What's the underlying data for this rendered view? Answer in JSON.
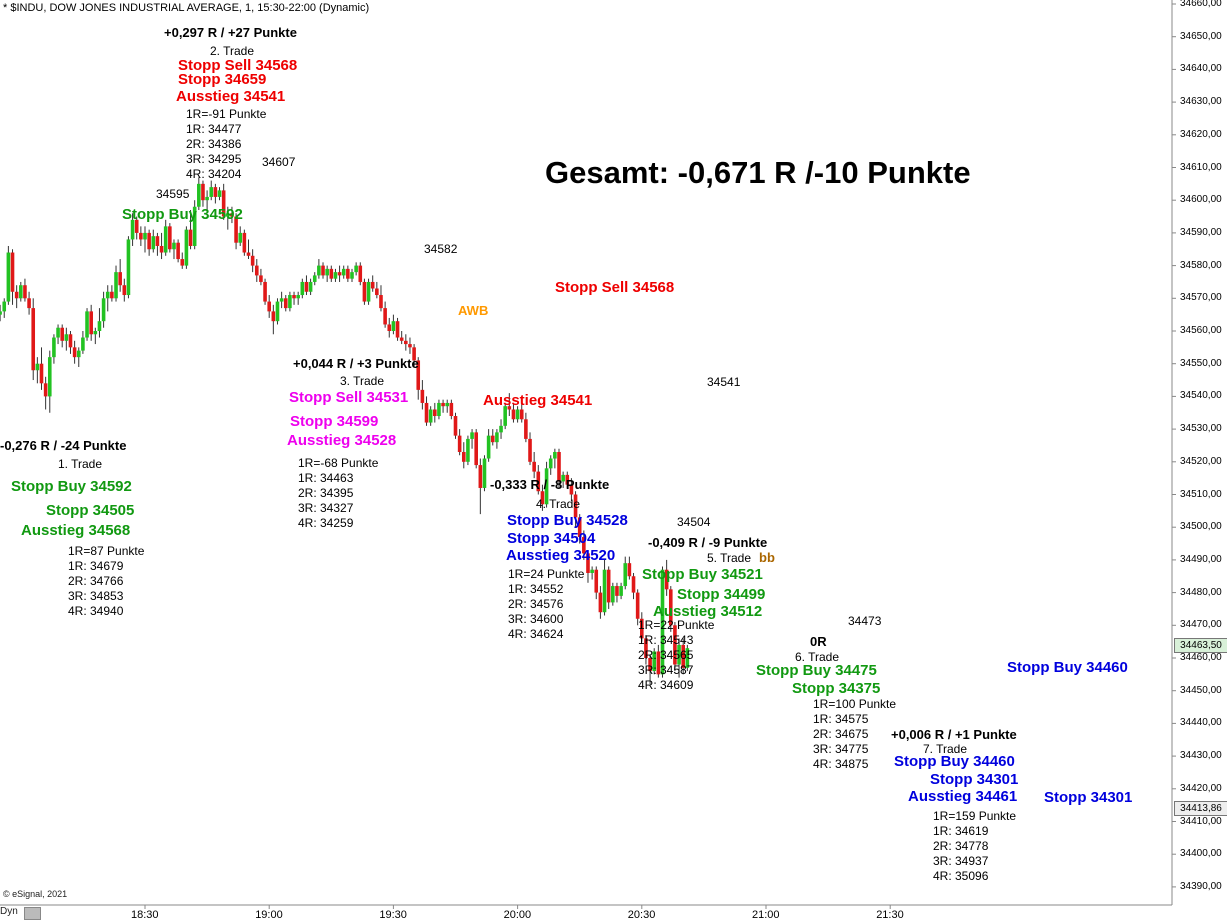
{
  "header": {
    "title": "* $INDU, DOW JONES INDUSTRIAL AVERAGE, 1, 15:30-22:00 (Dynamic)"
  },
  "gesamt": "Gesamt: -0,671 R /-10 Punkte",
  "footer": {
    "copyright": "© eSignal, 2021",
    "dyn": "Dyn"
  },
  "colors": {
    "up": "#22c222",
    "down": "#e01818",
    "red": "#ee0000",
    "green": "#119911",
    "blue": "#0000dd",
    "magenta": "#ee00ee",
    "orange": "#ff9900",
    "brown": "#aa6600"
  },
  "chart_data": {
    "type": "candlestick",
    "symbol": "$INDU",
    "interval_minutes": 1,
    "session": "15:30-22:00",
    "ylim": [
      34385,
      34663
    ],
    "y_ticks": [
      "34390,00",
      "34400,00",
      "34410,00",
      "34420,00",
      "34430,00",
      "34440,00",
      "34450,00",
      "34460,00",
      "34470,00",
      "34480,00",
      "34490,00",
      "34500,00",
      "34510,00",
      "34520,00",
      "34530,00",
      "34540,00",
      "34550,00",
      "34560,00",
      "34570,00",
      "34580,00",
      "34590,00",
      "34600,00",
      "34610,00",
      "34620,00",
      "34630,00",
      "34640,00",
      "34650,00",
      "34660,00"
    ],
    "x_ticks": [
      {
        "label": "18:30",
        "t": 0
      },
      {
        "label": "19:00",
        "t": 30
      },
      {
        "label": "19:30",
        "t": 60
      },
      {
        "label": "20:00",
        "t": 90
      },
      {
        "label": "20:30",
        "t": 120
      },
      {
        "label": "21:00",
        "t": 150
      },
      {
        "label": "21:30",
        "t": 180
      }
    ],
    "last_price_tags": [
      "34463,50",
      "34413,86"
    ],
    "candles": [
      [
        -35,
        34565,
        34568,
        34563,
        34566
      ],
      [
        -34,
        34566,
        34570,
        34564,
        34569
      ],
      [
        -33,
        34569,
        34586,
        34568,
        34584
      ],
      [
        -32,
        34584,
        34585,
        34568,
        34572
      ],
      [
        -31,
        34572,
        34574,
        34567,
        34570
      ],
      [
        -30,
        34570,
        34575,
        34569,
        34574
      ],
      [
        -29,
        34574,
        34576,
        34569,
        34570
      ],
      [
        -28,
        34570,
        34572,
        34565,
        34567
      ],
      [
        -27,
        34567,
        34570,
        34545,
        34548
      ],
      [
        -26,
        34548,
        34552,
        34544,
        34550
      ],
      [
        -25,
        34550,
        34555,
        34542,
        34544
      ],
      [
        -24,
        34544,
        34546,
        34536,
        34540
      ],
      [
        -23,
        34540,
        34554,
        34535,
        34552
      ],
      [
        -22,
        34552,
        34559,
        34550,
        34558
      ],
      [
        -21,
        34558,
        34562,
        34556,
        34561
      ],
      [
        -20,
        34561,
        34562,
        34555,
        34557
      ],
      [
        -19,
        34557,
        34561,
        34554,
        34559
      ],
      [
        -18,
        34559,
        34560,
        34553,
        34555
      ],
      [
        -17,
        34555,
        34557,
        34550,
        34552
      ],
      [
        -16,
        34552,
        34555,
        34549,
        34554
      ],
      [
        -15,
        34554,
        34560,
        34553,
        34558
      ],
      [
        -14,
        34558,
        34567,
        34557,
        34566
      ],
      [
        -13,
        34566,
        34568,
        34557,
        34559
      ],
      [
        -12,
        34559,
        34561,
        34556,
        34560
      ],
      [
        -11,
        34560,
        34567,
        34558,
        34563
      ],
      [
        -10,
        34563,
        34572,
        34561,
        34570
      ],
      [
        -9,
        34570,
        34574,
        34566,
        34572
      ],
      [
        -8,
        34572,
        34574,
        34569,
        34570
      ],
      [
        -7,
        34570,
        34580,
        34569,
        34578
      ],
      [
        -6,
        34578,
        34582,
        34572,
        34574
      ],
      [
        -5,
        34574,
        34576,
        34569,
        34571
      ],
      [
        -4,
        34571,
        34589,
        34570,
        34588
      ],
      [
        -3,
        34588,
        34596,
        34586,
        34594
      ],
      [
        -2,
        34594,
        34595,
        34588,
        34590
      ],
      [
        -1,
        34590,
        34592,
        34586,
        34588
      ],
      [
        0,
        34588,
        34592,
        34584,
        34590
      ],
      [
        1,
        34590,
        34591,
        34583,
        34585
      ],
      [
        2,
        34585,
        34591,
        34584,
        34589
      ],
      [
        3,
        34589,
        34590,
        34583,
        34586
      ],
      [
        4,
        34586,
        34590,
        34582,
        34584
      ],
      [
        5,
        34584,
        34594,
        34583,
        34592
      ],
      [
        6,
        34592,
        34593,
        34584,
        34585
      ],
      [
        7,
        34585,
        34588,
        34582,
        34587
      ],
      [
        8,
        34587,
        34588,
        34581,
        34582
      ],
      [
        9,
        34582,
        34584,
        34579,
        34580
      ],
      [
        10,
        34580,
        34592,
        34579,
        34591
      ],
      [
        11,
        34591,
        34597,
        34585,
        34586
      ],
      [
        12,
        34586,
        34600,
        34585,
        34598
      ],
      [
        13,
        34598,
        34607,
        34597,
        34605
      ],
      [
        14,
        34605,
        34606,
        34598,
        34600
      ],
      [
        15,
        34600,
        34603,
        34596,
        34601
      ],
      [
        16,
        34601,
        34606,
        34600,
        34604
      ],
      [
        17,
        34604,
        34605,
        34599,
        34601
      ],
      [
        18,
        34601,
        34604,
        34600,
        34603
      ],
      [
        19,
        34603,
        34605,
        34594,
        34595
      ],
      [
        20,
        34595,
        34598,
        34591,
        34596
      ],
      [
        21,
        34596,
        34598,
        34593,
        34595
      ],
      [
        22,
        34595,
        34596,
        34585,
        34587
      ],
      [
        23,
        34587,
        34592,
        34586,
        34590
      ],
      [
        24,
        34590,
        34591,
        34583,
        34584
      ],
      [
        25,
        34584,
        34588,
        34582,
        34583
      ],
      [
        26,
        34583,
        34585,
        34578,
        34580
      ],
      [
        27,
        34580,
        34582,
        34575,
        34577
      ],
      [
        28,
        34577,
        34579,
        34574,
        34575
      ],
      [
        29,
        34575,
        34576,
        34568,
        34569
      ],
      [
        30,
        34569,
        34571,
        34564,
        34566
      ],
      [
        31,
        34566,
        34568,
        34559,
        34563
      ],
      [
        32,
        34563,
        34570,
        34562,
        34569
      ],
      [
        33,
        34569,
        34572,
        34567,
        34570
      ],
      [
        34,
        34570,
        34571,
        34566,
        34567
      ],
      [
        35,
        34567,
        34572,
        34566,
        34571
      ],
      [
        36,
        34571,
        34572,
        34568,
        34570
      ],
      [
        37,
        34570,
        34572,
        34568,
        34571
      ],
      [
        38,
        34571,
        34576,
        34570,
        34575
      ],
      [
        39,
        34575,
        34577,
        34571,
        34572
      ],
      [
        40,
        34572,
        34576,
        34571,
        34575
      ],
      [
        41,
        34575,
        34578,
        34574,
        34577
      ],
      [
        42,
        34577,
        34582,
        34576,
        34580
      ],
      [
        43,
        34580,
        34581,
        34576,
        34577
      ],
      [
        44,
        34577,
        34580,
        34575,
        34579
      ],
      [
        45,
        34579,
        34580,
        34575,
        34576
      ],
      [
        46,
        34576,
        34579,
        34575,
        34578
      ],
      [
        47,
        34578,
        34580,
        34575,
        34577
      ],
      [
        48,
        34577,
        34580,
        34576,
        34579
      ],
      [
        49,
        34579,
        34580,
        34575,
        34576
      ],
      [
        50,
        34576,
        34579,
        34575,
        34578
      ],
      [
        51,
        34578,
        34581,
        34577,
        34580
      ],
      [
        52,
        34580,
        34581,
        34574,
        34575
      ],
      [
        53,
        34575,
        34576,
        34568,
        34569
      ],
      [
        54,
        34569,
        34576,
        34568,
        34575
      ],
      [
        55,
        34575,
        34577,
        34572,
        34573
      ],
      [
        56,
        34573,
        34575,
        34570,
        34571
      ],
      [
        57,
        34571,
        34574,
        34566,
        34567
      ],
      [
        58,
        34567,
        34569,
        34561,
        34562
      ],
      [
        59,
        34562,
        34564,
        34558,
        34560
      ],
      [
        60,
        34560,
        34565,
        34559,
        34563
      ],
      [
        61,
        34563,
        34564,
        34557,
        34558
      ],
      [
        62,
        34558,
        34560,
        34556,
        34557
      ],
      [
        63,
        34557,
        34559,
        34554,
        34556
      ],
      [
        64,
        34556,
        34558,
        34553,
        34555
      ],
      [
        65,
        34555,
        34556,
        34549,
        34551
      ],
      [
        66,
        34551,
        34552,
        34539,
        34542
      ],
      [
        67,
        34542,
        34545,
        34536,
        34538
      ],
      [
        68,
        34538,
        34540,
        34531,
        34532
      ],
      [
        69,
        34532,
        34537,
        34531,
        34536
      ],
      [
        70,
        34536,
        34538,
        34532,
        34534
      ],
      [
        71,
        34534,
        34539,
        34533,
        34538
      ],
      [
        72,
        34538,
        34539,
        34535,
        34537
      ],
      [
        73,
        34537,
        34539,
        34535,
        34538
      ],
      [
        74,
        34538,
        34539,
        34533,
        34534
      ],
      [
        75,
        34534,
        34535,
        34527,
        34528
      ],
      [
        76,
        34528,
        34530,
        34522,
        34523
      ],
      [
        77,
        34523,
        34526,
        34518,
        34520
      ],
      [
        78,
        34520,
        34528,
        34519,
        34527
      ],
      [
        79,
        34527,
        34530,
        34524,
        34529
      ],
      [
        80,
        34529,
        34530,
        34518,
        34519
      ],
      [
        81,
        34519,
        34521,
        34504,
        34512
      ],
      [
        82,
        34512,
        34522,
        34511,
        34521
      ],
      [
        83,
        34521,
        34530,
        34520,
        34528
      ],
      [
        84,
        34528,
        34530,
        34525,
        34526
      ],
      [
        85,
        34526,
        34530,
        34524,
        34529
      ],
      [
        86,
        34529,
        34533,
        34527,
        34531
      ],
      [
        87,
        34531,
        34538,
        34530,
        34537
      ],
      [
        88,
        34537,
        34541,
        34534,
        34536
      ],
      [
        89,
        34536,
        34538,
        34532,
        34533
      ],
      [
        90,
        34533,
        34537,
        34532,
        34536
      ],
      [
        91,
        34536,
        34538,
        34532,
        34533
      ],
      [
        92,
        34533,
        34535,
        34526,
        34527
      ],
      [
        93,
        34527,
        34529,
        34519,
        34520
      ],
      [
        94,
        34520,
        34523,
        34515,
        34517
      ],
      [
        95,
        34517,
        34519,
        34510,
        34511
      ],
      [
        96,
        34511,
        34513,
        34505,
        34507
      ],
      [
        97,
        34507,
        34520,
        34506,
        34518
      ],
      [
        98,
        34518,
        34522,
        34516,
        34521
      ],
      [
        99,
        34521,
        34524,
        34518,
        34523
      ],
      [
        100,
        34523,
        34524,
        34512,
        34514
      ],
      [
        101,
        34514,
        34517,
        34512,
        34516
      ],
      [
        102,
        34516,
        34517,
        34512,
        34513
      ],
      [
        103,
        34513,
        34515,
        34508,
        34510
      ],
      [
        104,
        34510,
        34511,
        34500,
        34503
      ],
      [
        105,
        34503,
        34504,
        34495,
        34497
      ],
      [
        106,
        34497,
        34499,
        34490,
        34492
      ],
      [
        107,
        34492,
        34493,
        34483,
        34486
      ],
      [
        108,
        34486,
        34488,
        34484,
        34487
      ],
      [
        109,
        34487,
        34488,
        34478,
        34480
      ],
      [
        110,
        34480,
        34482,
        34472,
        34474
      ],
      [
        111,
        34474,
        34490,
        34473,
        34487
      ],
      [
        112,
        34487,
        34488,
        34475,
        34477
      ],
      [
        113,
        34477,
        34483,
        34476,
        34482
      ],
      [
        114,
        34482,
        34483,
        34477,
        34479
      ],
      [
        115,
        34479,
        34483,
        34478,
        34482
      ],
      [
        116,
        34482,
        34491,
        34481,
        34489
      ],
      [
        117,
        34489,
        34491,
        34484,
        34485
      ],
      [
        118,
        34485,
        34486,
        34478,
        34480
      ],
      [
        119,
        34480,
        34481,
        34470,
        34472
      ],
      [
        120,
        34472,
        34474,
        34465,
        34466
      ],
      [
        121,
        34466,
        34467,
        34458,
        34460
      ],
      [
        122,
        34460,
        34461,
        34452,
        34456
      ],
      [
        123,
        34456,
        34463,
        34455,
        34462
      ],
      [
        124,
        34462,
        34464,
        34454,
        34455
      ],
      [
        125,
        34455,
        34488,
        34454,
        34487
      ],
      [
        126,
        34487,
        34490,
        34479,
        34481
      ],
      [
        127,
        34481,
        34482,
        34468,
        34470
      ],
      [
        128,
        34470,
        34471,
        34456,
        34458
      ],
      [
        129,
        34458,
        34466,
        34454,
        34464
      ],
      [
        130,
        34464,
        34466,
        34455,
        34457
      ],
      [
        131,
        34457,
        34464,
        34456,
        34463
      ]
    ]
  },
  "labels": {
    "trade2_result": "+0,297 R / +27 Punkte",
    "trade2_name": "2. Trade",
    "trade2_sell": "Stopp Sell 34568",
    "trade2_stopp": "Stopp 34659",
    "trade2_exit": "Ausstieg 34541",
    "trade2_r": [
      "1R=-91 Punkte",
      "1R: 34477",
      "2R: 34386",
      "3R: 34295",
      "4R: 34204"
    ],
    "p34607": "34607",
    "p34595": "34595",
    "trade2_buy": "Stopp Buy 34592",
    "p34582": "34582",
    "awb": "AWB",
    "stopp_sell_34568": "Stopp Sell 34568",
    "trade3_result": "+0,044 R / +3 Punkte",
    "trade3_name": "3. Trade",
    "trade3_sell": "Stopp Sell 34531",
    "trade3_stopp": "Stopp 34599",
    "trade3_exit": "Ausstieg 34528",
    "trade3_r": [
      "1R=-68 Punkte",
      "1R: 34463",
      "2R: 34395",
      "3R: 34327",
      "4R: 34259"
    ],
    "ausstieg_34541": "Ausstieg 34541",
    "p34541": "34541",
    "trade1_result": "-0,276 R / -24 Punkte",
    "trade1_name": "1. Trade",
    "trade1_buy": "Stopp Buy 34592",
    "trade1_stopp": "Stopp 34505",
    "trade1_exit": "Ausstieg 34568",
    "trade1_r": [
      "1R=87 Punkte",
      "1R: 34679",
      "2R: 34766",
      "3R: 34853",
      "4R: 34940"
    ],
    "trade4_result": "-0,333 R / -8 Punkte",
    "trade4_name": "4. Trade",
    "trade4_buy": "Stopp Buy 34528",
    "trade4_stopp": "Stopp 34504",
    "trade4_exit": "Ausstieg 34520",
    "trade4_r": [
      "1R=24 Punkte",
      "1R: 34552",
      "2R: 34576",
      "3R: 34600",
      "4R: 34624"
    ],
    "p34504": "34504",
    "trade5_result": "-0,409 R / -9 Punkte",
    "trade5_name": "5. Trade",
    "bb": "bb",
    "trade5_buy": "Stopp Buy 34521",
    "trade5_stopp": "Stopp 34499",
    "trade5_exit": "Ausstieg 34512",
    "trade5_r": [
      "1R=22 Punkte",
      "1R: 34543",
      "2R: 34565",
      "3R: 34587",
      "4R: 34609"
    ],
    "p34473": "34473",
    "trade6_result": "0R",
    "trade6_name": "6. Trade",
    "trade6_buy": "Stopp Buy 34475",
    "trade6_stopp": "Stopp 34375",
    "trade6_r": [
      "1R=100 Punkte",
      "1R: 34575",
      "2R: 34675",
      "3R: 34775",
      "4R: 34875"
    ],
    "stopp_buy_34460": "Stopp Buy 34460",
    "trade7_result": "+0,006 R / +1 Punkte",
    "trade7_name": "7. Trade",
    "trade7_buy": "Stopp Buy 34460",
    "trade7_stopp": "Stopp 34301",
    "trade7_exit": "Ausstieg 34461",
    "stopp_34301": "Stopp 34301",
    "trade7_r": [
      "1R=159 Punkte",
      "1R: 34619",
      "2R: 34778",
      "3R: 34937",
      "4R: 35096"
    ]
  }
}
